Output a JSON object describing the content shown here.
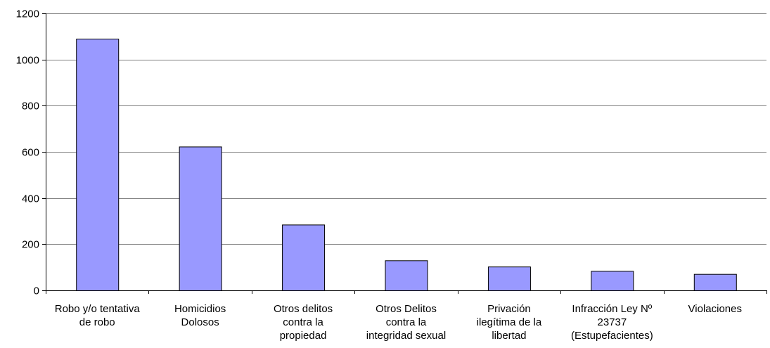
{
  "chart_data": {
    "type": "bar",
    "categories": [
      [
        "Robo y/o tentativa",
        "de robo"
      ],
      [
        "Homicidios",
        "Dolosos"
      ],
      [
        "Otros delitos",
        "contra la",
        "propiedad"
      ],
      [
        "Otros Delitos",
        "contra la",
        "integridad sexual"
      ],
      [
        "Privación",
        "ilegítima de la",
        "libertad"
      ],
      [
        "Infracción Ley Nº",
        "23737",
        "(Estupefacientes)"
      ],
      [
        "Violaciones"
      ]
    ],
    "values": [
      1090,
      623,
      285,
      130,
      103,
      84,
      71
    ],
    "ylim": [
      0,
      1200
    ],
    "yticks": [
      0,
      200,
      400,
      600,
      800,
      1000,
      1200
    ],
    "grid": true,
    "colors": {
      "bar": "#9999ff",
      "bar_stroke": "#000000",
      "grid": "#808080",
      "axis": "#000000"
    }
  }
}
